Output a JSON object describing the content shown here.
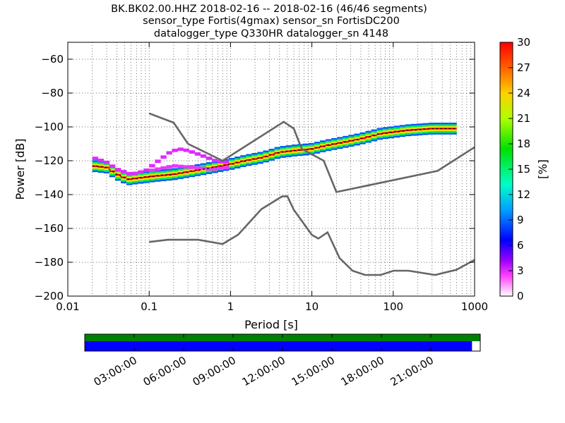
{
  "title_lines": [
    "BK.BK02.00.HHZ   2018-02-16 -- 2018-02-16  (46/46 segments)",
    "sensor_type Fortis(4gmax) sensor_sn FortisDC200",
    "datalogger_type Q330HR datalogger_sn 4148"
  ],
  "chart_data": [
    {
      "type": "heatmap",
      "title": "BK.BK02.00.HHZ   2018-02-16 -- 2018-02-16  (46/46 segments)",
      "xlabel": "Period [s]",
      "ylabel": "Power [dB]",
      "xscale": "log",
      "xlim": [
        0.01,
        1000
      ],
      "ylim": [
        -200,
        -50
      ],
      "x_tick_labels": [
        "0.01",
        "0.1",
        "1",
        "10",
        "100",
        "1000"
      ],
      "x_tick_values": [
        0.01,
        0.1,
        1,
        10,
        100,
        1000
      ],
      "y_tick_values": [
        -200,
        -180,
        -160,
        -140,
        -120,
        -100,
        -80,
        -60
      ],
      "y_tick_labels": [
        "−200",
        "−180",
        "−160",
        "−140",
        "−120",
        "−100",
        "−80",
        "−60"
      ],
      "grid": true,
      "colorbar": {
        "label": "[%]",
        "range": [
          0,
          30
        ],
        "ticks": [
          0,
          3,
          6,
          9,
          12,
          15,
          18,
          21,
          24,
          27,
          30
        ]
      },
      "psd_core": [
        [
          0.02,
          -123
        ],
        [
          0.03,
          -124
        ],
        [
          0.04,
          -128
        ],
        [
          0.055,
          -131
        ],
        [
          0.08,
          -130
        ],
        [
          0.12,
          -129
        ],
        [
          0.2,
          -128
        ],
        [
          0.35,
          -126
        ],
        [
          0.6,
          -124
        ],
        [
          1,
          -122
        ],
        [
          1.5,
          -120
        ],
        [
          2.5,
          -118
        ],
        [
          4,
          -115
        ],
        [
          6,
          -114
        ],
        [
          10,
          -113
        ],
        [
          15,
          -111
        ],
        [
          25,
          -109
        ],
        [
          40,
          -107
        ],
        [
          70,
          -104
        ],
        [
          150,
          -102
        ],
        [
          300,
          -101
        ],
        [
          600,
          -101
        ]
      ],
      "psd_band_spread_db": 3,
      "psd_outlier_curve": [
        [
          0.02,
          -118
        ],
        [
          0.03,
          -121
        ],
        [
          0.04,
          -125
        ],
        [
          0.06,
          -128
        ],
        [
          0.09,
          -126
        ],
        [
          0.13,
          -120
        ],
        [
          0.18,
          -115
        ],
        [
          0.23,
          -113
        ],
        [
          0.3,
          -114
        ],
        [
          0.45,
          -117
        ],
        [
          0.65,
          -120
        ],
        [
          0.85,
          -121
        ],
        [
          1,
          -120
        ]
      ],
      "psd_mid_curve": [
        [
          0.1,
          -126
        ],
        [
          0.2,
          -123
        ],
        [
          0.35,
          -124
        ],
        [
          0.6,
          -125
        ],
        [
          0.9,
          -124
        ]
      ],
      "nhnm": [
        [
          0.1,
          -92
        ],
        [
          0.2,
          -97.5
        ],
        [
          0.3,
          -110
        ],
        [
          0.8,
          -120
        ],
        [
          4.5,
          -97
        ],
        [
          6,
          -101
        ],
        [
          7.5,
          -113
        ],
        [
          14,
          -120
        ],
        [
          20,
          -138.5
        ],
        [
          350,
          -126
        ],
        [
          1000,
          -112
        ]
      ],
      "nlnm": [
        [
          0.1,
          -168
        ],
        [
          0.17,
          -166.7
        ],
        [
          0.4,
          -166.7
        ],
        [
          0.8,
          -169.2
        ],
        [
          1.24,
          -163.7
        ],
        [
          2.4,
          -148.6
        ],
        [
          4.3,
          -141.1
        ],
        [
          5,
          -141
        ],
        [
          6,
          -149
        ],
        [
          10,
          -163.8
        ],
        [
          12,
          -166
        ],
        [
          15.6,
          -162.3
        ],
        [
          21.9,
          -177.5
        ],
        [
          31.6,
          -185
        ],
        [
          45,
          -187.5
        ],
        [
          70,
          -187.5
        ],
        [
          101,
          -185
        ],
        [
          154,
          -185
        ],
        [
          328,
          -187.5
        ],
        [
          600,
          -184.4
        ],
        [
          1000,
          -178.6
        ]
      ]
    },
    {
      "type": "area",
      "title": "",
      "xlabel": "",
      "ylabel": "",
      "x_tick_labels": [
        "03:00:00",
        "06:00:00",
        "09:00:00",
        "12:00:00",
        "15:00:00",
        "18:00:00",
        "21:00:00"
      ],
      "x_tick_values_hours": [
        3,
        6,
        9,
        12,
        15,
        18,
        21
      ],
      "xlim_hours": [
        0,
        24
      ],
      "rows": [
        {
          "color": "#008000",
          "start_hour": 0,
          "end_hour": 24
        },
        {
          "color": "#0000ff",
          "start_hour": 0,
          "end_hour": 23.5
        }
      ]
    }
  ]
}
